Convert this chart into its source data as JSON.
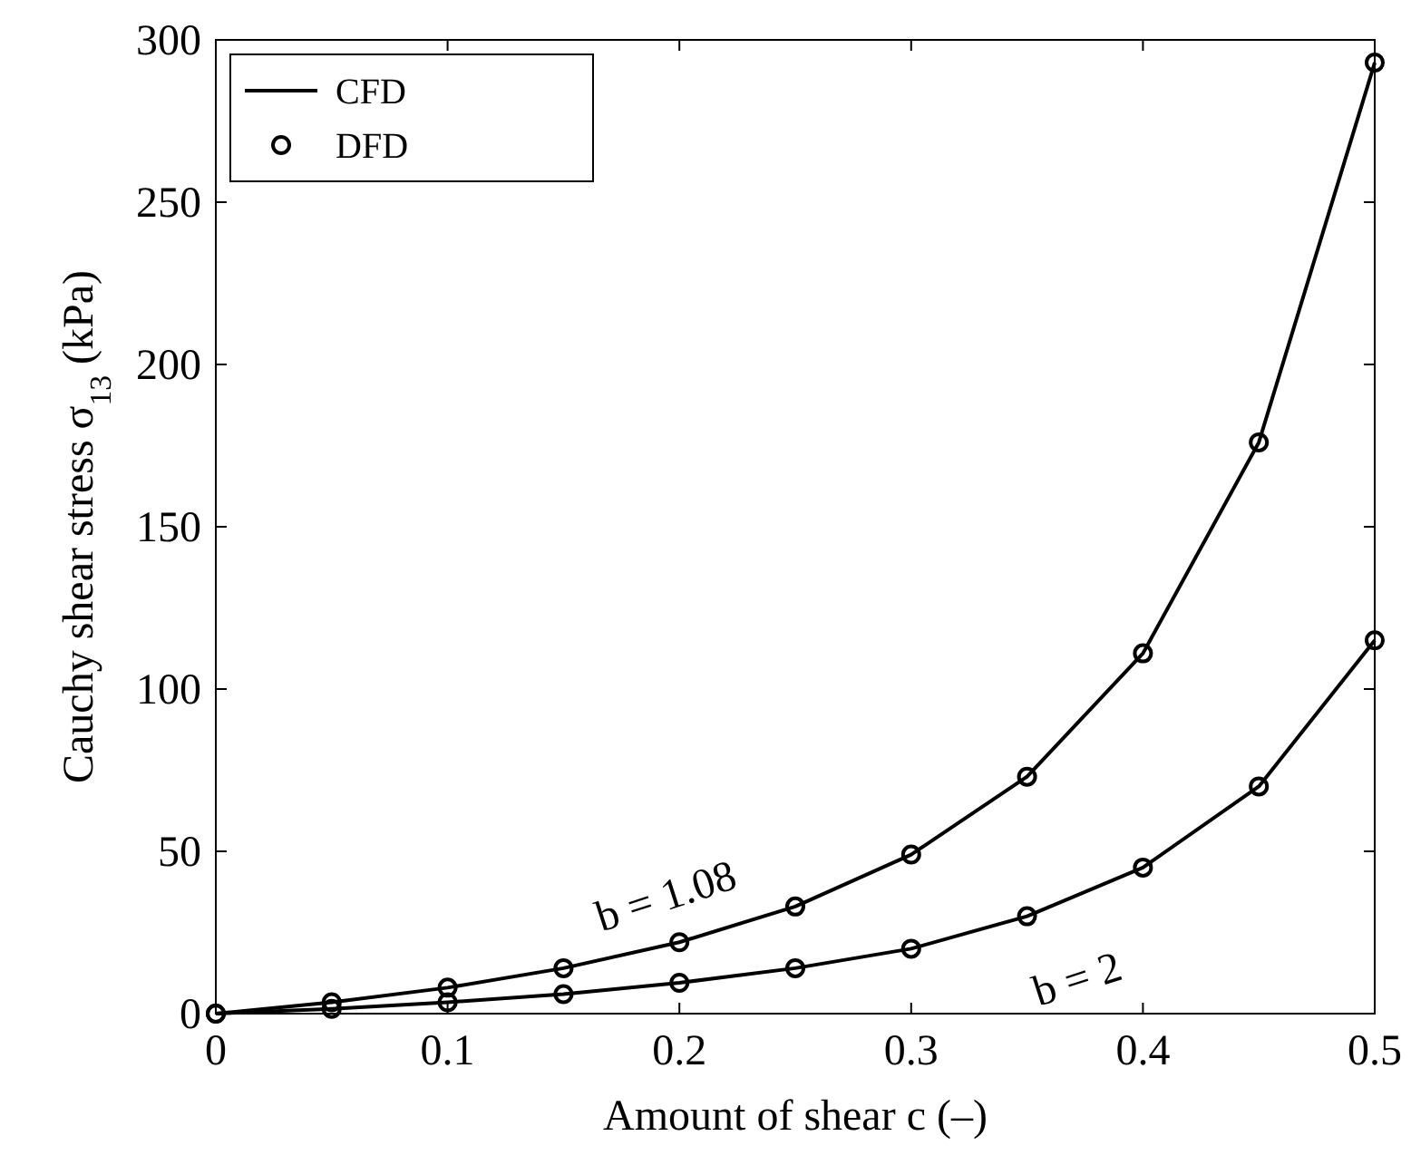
{
  "chart_data": {
    "type": "line",
    "xlabel": "Amount of shear c (–)",
    "ylabel": "Cauchy shear stress σ$_{13}$ (kPa)",
    "x": [
      0,
      0.05,
      0.1,
      0.15,
      0.2,
      0.25,
      0.3,
      0.35,
      0.4,
      0.45,
      0.5
    ],
    "series": [
      {
        "name": "CFD",
        "color": "#000000",
        "marker": "none",
        "values": [
          0,
          3.5,
          8,
          14,
          22,
          33,
          49,
          73,
          111,
          176,
          293
        ]
      },
      {
        "color": "#000000",
        "marker": "none",
        "values": [
          0,
          1.5,
          3.5,
          6,
          9.5,
          14,
          20,
          30,
          45,
          70,
          115
        ]
      },
      {
        "name": "DFD",
        "type": "scatter",
        "color": "#000000",
        "marker": "circle",
        "values": [
          0,
          3.5,
          8,
          14,
          22,
          33,
          49,
          73,
          111,
          176,
          293
        ]
      },
      {
        "type": "scatter",
        "color": "#000000",
        "marker": "circle",
        "values": [
          0,
          1.5,
          3.5,
          6,
          9.5,
          14,
          20,
          30,
          45,
          70,
          115
        ]
      }
    ],
    "xlim": [
      0,
      0.5
    ],
    "xticks": [
      0,
      0.1,
      0.2,
      0.3,
      0.4,
      0.5
    ],
    "ylim": [
      0,
      300
    ],
    "yticks": [
      0,
      50,
      100,
      150,
      200,
      250,
      300
    ],
    "grid": false,
    "legend": "top left",
    "annotations": [
      {
        "text": "b = 1.08",
        "x": 0.2,
        "y": 22
      },
      {
        "text": "b = 2",
        "x": 0.35,
        "y": 30
      }
    ]
  }
}
